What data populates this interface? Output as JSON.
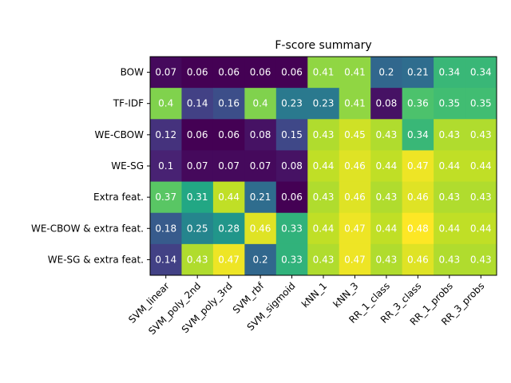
{
  "chart_data": {
    "type": "heatmap",
    "title": "F-score summary",
    "x_categories": [
      "SVM_linear",
      "SVM_poly_2nd",
      "SVM_poly_3rd",
      "SVM_rbf",
      "SVM_sigmoid",
      "kNN_1",
      "kNN_3",
      "RR_1_class",
      "RR_3_class",
      "RR_1_probs",
      "RR_3_probs"
    ],
    "y_categories": [
      "BOW",
      "TF-IDF",
      "WE-CBOW",
      "WE-SG",
      "Extra feat.",
      "WE-CBOW & extra feat.",
      "WE-SG & extra feat."
    ],
    "values": [
      [
        0.07,
        0.06,
        0.06,
        0.06,
        0.06,
        0.41,
        0.41,
        0.2,
        0.21,
        0.34,
        0.34
      ],
      [
        0.4,
        0.14,
        0.16,
        0.4,
        0.23,
        0.23,
        0.41,
        0.08,
        0.36,
        0.35,
        0.35
      ],
      [
        0.12,
        0.06,
        0.06,
        0.08,
        0.15,
        0.43,
        0.45,
        0.43,
        0.34,
        0.43,
        0.43
      ],
      [
        0.1,
        0.07,
        0.07,
        0.07,
        0.08,
        0.44,
        0.46,
        0.44,
        0.47,
        0.44,
        0.44
      ],
      [
        0.37,
        0.31,
        0.44,
        0.21,
        0.06,
        0.43,
        0.46,
        0.43,
        0.46,
        0.43,
        0.43
      ],
      [
        0.18,
        0.25,
        0.28,
        0.46,
        0.33,
        0.44,
        0.47,
        0.44,
        0.48,
        0.44,
        0.44
      ],
      [
        0.14,
        0.43,
        0.47,
        0.2,
        0.33,
        0.43,
        0.47,
        0.43,
        0.46,
        0.43,
        0.43
      ]
    ],
    "colormap": "viridis",
    "value_range": [
      0.06,
      0.48
    ],
    "text_color": "#ffffff",
    "grid": false
  }
}
